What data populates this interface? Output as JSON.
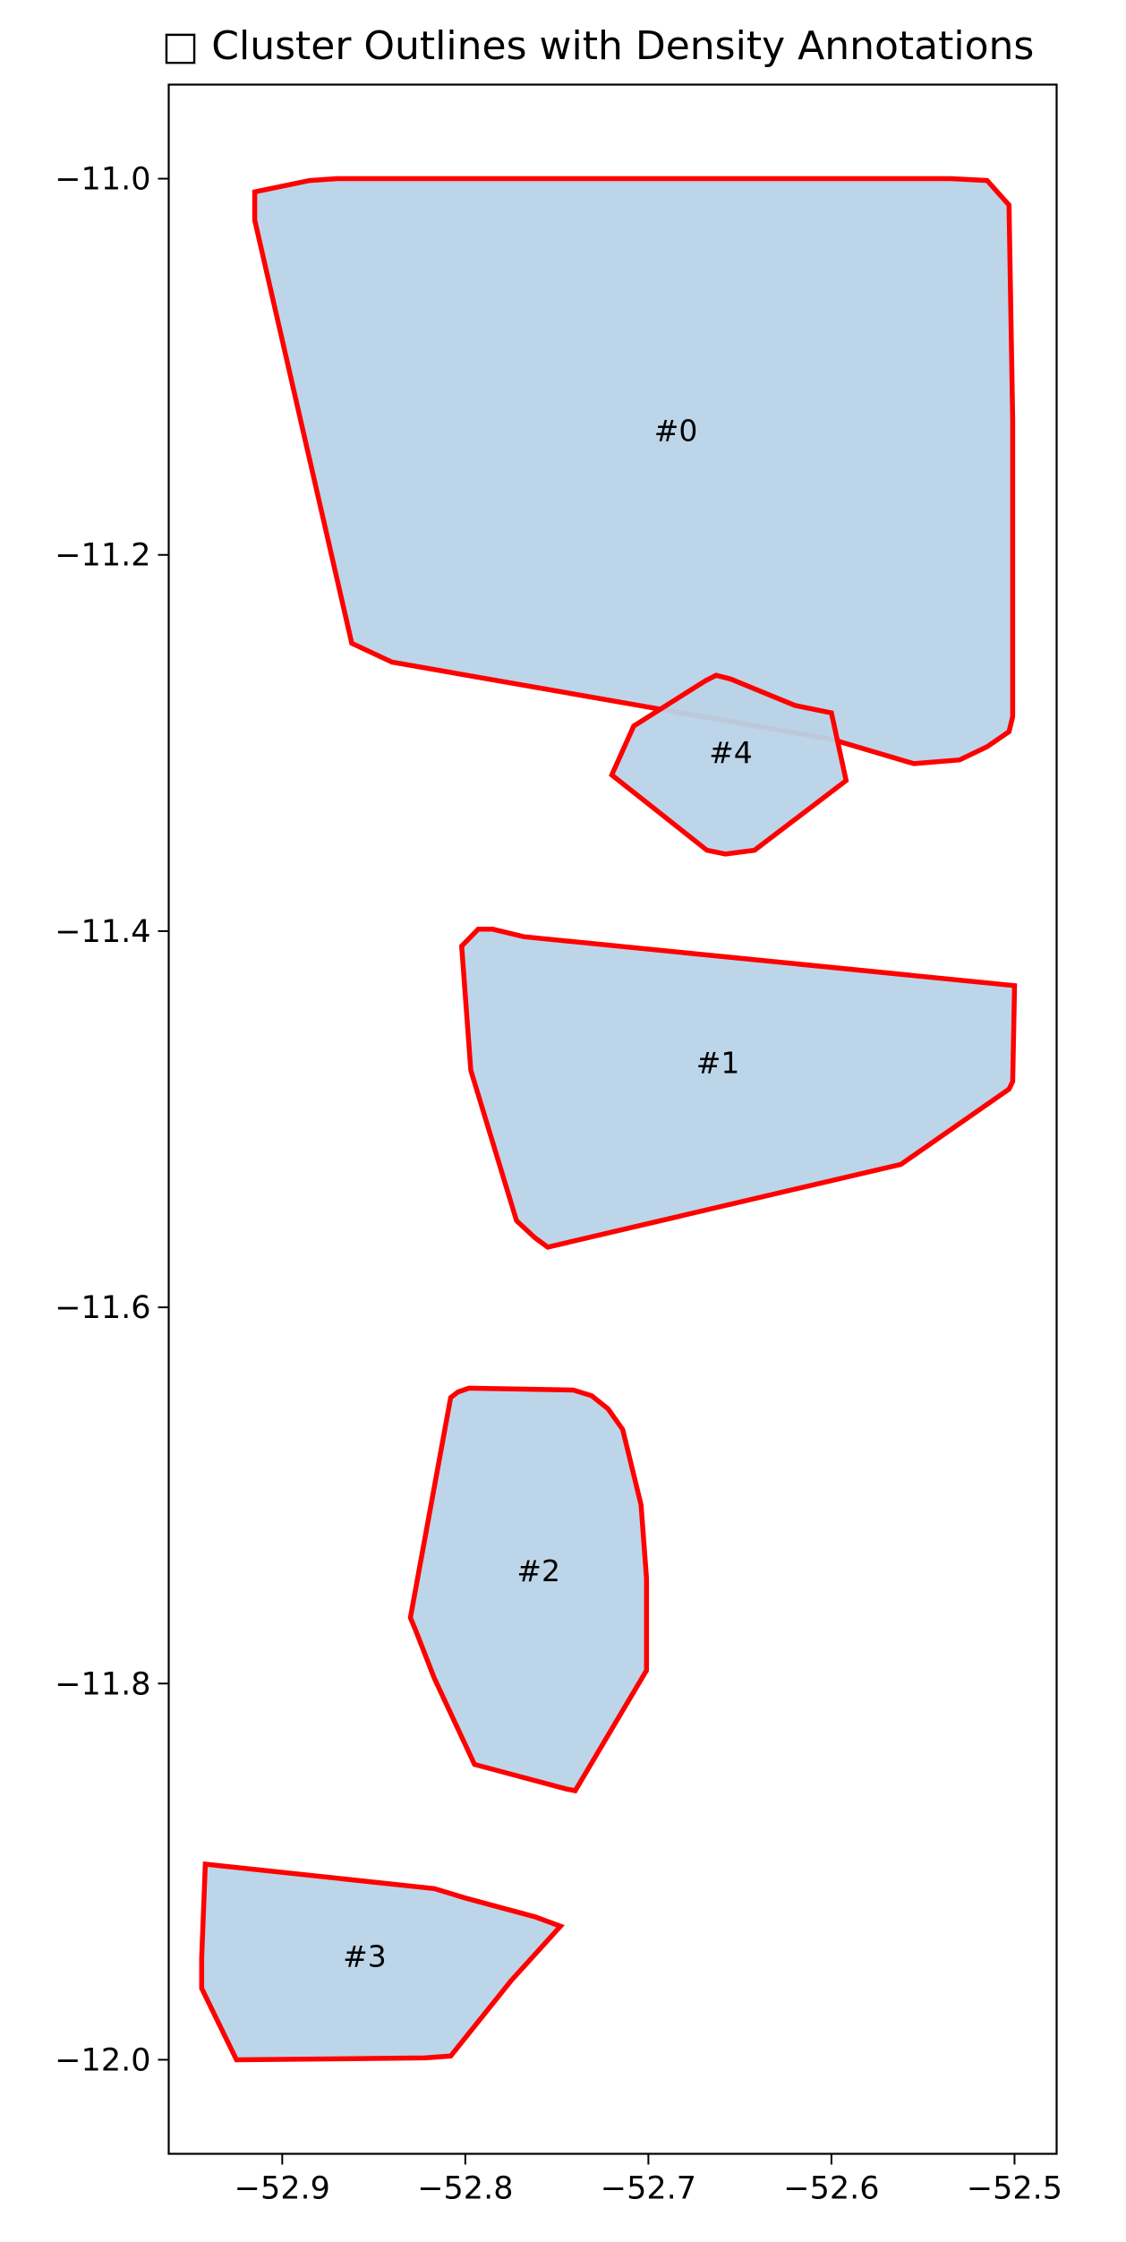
{
  "chart_data": {
    "type": "polygon-map",
    "title": "□ Cluster Outlines with Density Annotations",
    "xlabel": "",
    "ylabel": "",
    "xlim": [
      -52.962,
      -52.477
    ],
    "ylim": [
      -12.05,
      -10.95
    ],
    "x_ticks": [
      -52.9,
      -52.8,
      -52.7,
      -52.6,
      -52.5
    ],
    "x_tick_labels": [
      "−52.9",
      "−52.8",
      "−52.7",
      "−52.6",
      "−52.5"
    ],
    "y_ticks": [
      -11.0,
      -11.2,
      -11.4,
      -11.6,
      -11.8,
      -12.0
    ],
    "y_tick_labels": [
      "−11.0",
      "−11.2",
      "−11.4",
      "−11.6",
      "−11.8",
      "−12.0"
    ],
    "grid": false,
    "fill_color": "#b9d3e7",
    "edge_color": "#ff0000",
    "clusters": [
      {
        "label": "#0",
        "label_pos": [
          -52.685,
          -11.135
        ],
        "polygon": [
          [
            -52.915,
            -11.007
          ],
          [
            -52.885,
            -11.001
          ],
          [
            -52.87,
            -11.0
          ],
          [
            -52.535,
            -11.0
          ],
          [
            -52.515,
            -11.001
          ],
          [
            -52.503,
            -11.014
          ],
          [
            -52.501,
            -11.128
          ],
          [
            -52.501,
            -11.286
          ],
          [
            -52.503,
            -11.294
          ],
          [
            -52.515,
            -11.302
          ],
          [
            -52.53,
            -11.309
          ],
          [
            -52.555,
            -11.311
          ],
          [
            -52.6,
            -11.298
          ],
          [
            -52.84,
            -11.257
          ],
          [
            -52.862,
            -11.247
          ],
          [
            -52.915,
            -11.022
          ]
        ]
      },
      {
        "label": "#4",
        "label_pos": [
          -52.655,
          -11.306
        ],
        "polygon": [
          [
            -52.663,
            -11.264
          ],
          [
            -52.655,
            -11.266
          ],
          [
            -52.62,
            -11.28
          ],
          [
            -52.6,
            -11.284
          ],
          [
            -52.592,
            -11.32
          ],
          [
            -52.642,
            -11.357
          ],
          [
            -52.658,
            -11.359
          ],
          [
            -52.668,
            -11.357
          ],
          [
            -52.72,
            -11.317
          ],
          [
            -52.708,
            -11.291
          ],
          [
            -52.669,
            -11.267
          ]
        ]
      },
      {
        "label": "#1",
        "label_pos": [
          -52.662,
          -11.471
        ],
        "polygon": [
          [
            -52.793,
            -11.399
          ],
          [
            -52.785,
            -11.399
          ],
          [
            -52.768,
            -11.403
          ],
          [
            -52.5,
            -11.429
          ],
          [
            -52.501,
            -11.48
          ],
          [
            -52.503,
            -11.484
          ],
          [
            -52.562,
            -11.524
          ],
          [
            -52.755,
            -11.568
          ],
          [
            -52.762,
            -11.563
          ],
          [
            -52.772,
            -11.554
          ],
          [
            -52.797,
            -11.474
          ],
          [
            -52.802,
            -11.408
          ]
        ]
      },
      {
        "label": "#2",
        "label_pos": [
          -52.76,
          -11.741
        ],
        "polygon": [
          [
            -52.804,
            -11.645
          ],
          [
            -52.798,
            -11.643
          ],
          [
            -52.741,
            -11.644
          ],
          [
            -52.731,
            -11.647
          ],
          [
            -52.722,
            -11.654
          ],
          [
            -52.714,
            -11.665
          ],
          [
            -52.704,
            -11.705
          ],
          [
            -52.701,
            -11.744
          ],
          [
            -52.701,
            -11.793
          ],
          [
            -52.74,
            -11.857
          ],
          [
            -52.745,
            -11.856
          ],
          [
            -52.795,
            -11.843
          ],
          [
            -52.817,
            -11.797
          ],
          [
            -52.827,
            -11.772
          ],
          [
            -52.83,
            -11.765
          ],
          [
            -52.808,
            -11.648
          ]
        ]
      },
      {
        "label": "#3",
        "label_pos": [
          -52.855,
          -11.946
        ],
        "polygon": [
          [
            -52.942,
            -11.896
          ],
          [
            -52.817,
            -11.909
          ],
          [
            -52.8,
            -11.914
          ],
          [
            -52.762,
            -11.924
          ],
          [
            -52.748,
            -11.929
          ],
          [
            -52.775,
            -11.958
          ],
          [
            -52.808,
            -11.998
          ],
          [
            -52.822,
            -11.999
          ],
          [
            -52.925,
            -12.0
          ],
          [
            -52.937,
            -11.976
          ],
          [
            -52.944,
            -11.962
          ],
          [
            -52.944,
            -11.946
          ]
        ]
      }
    ]
  }
}
